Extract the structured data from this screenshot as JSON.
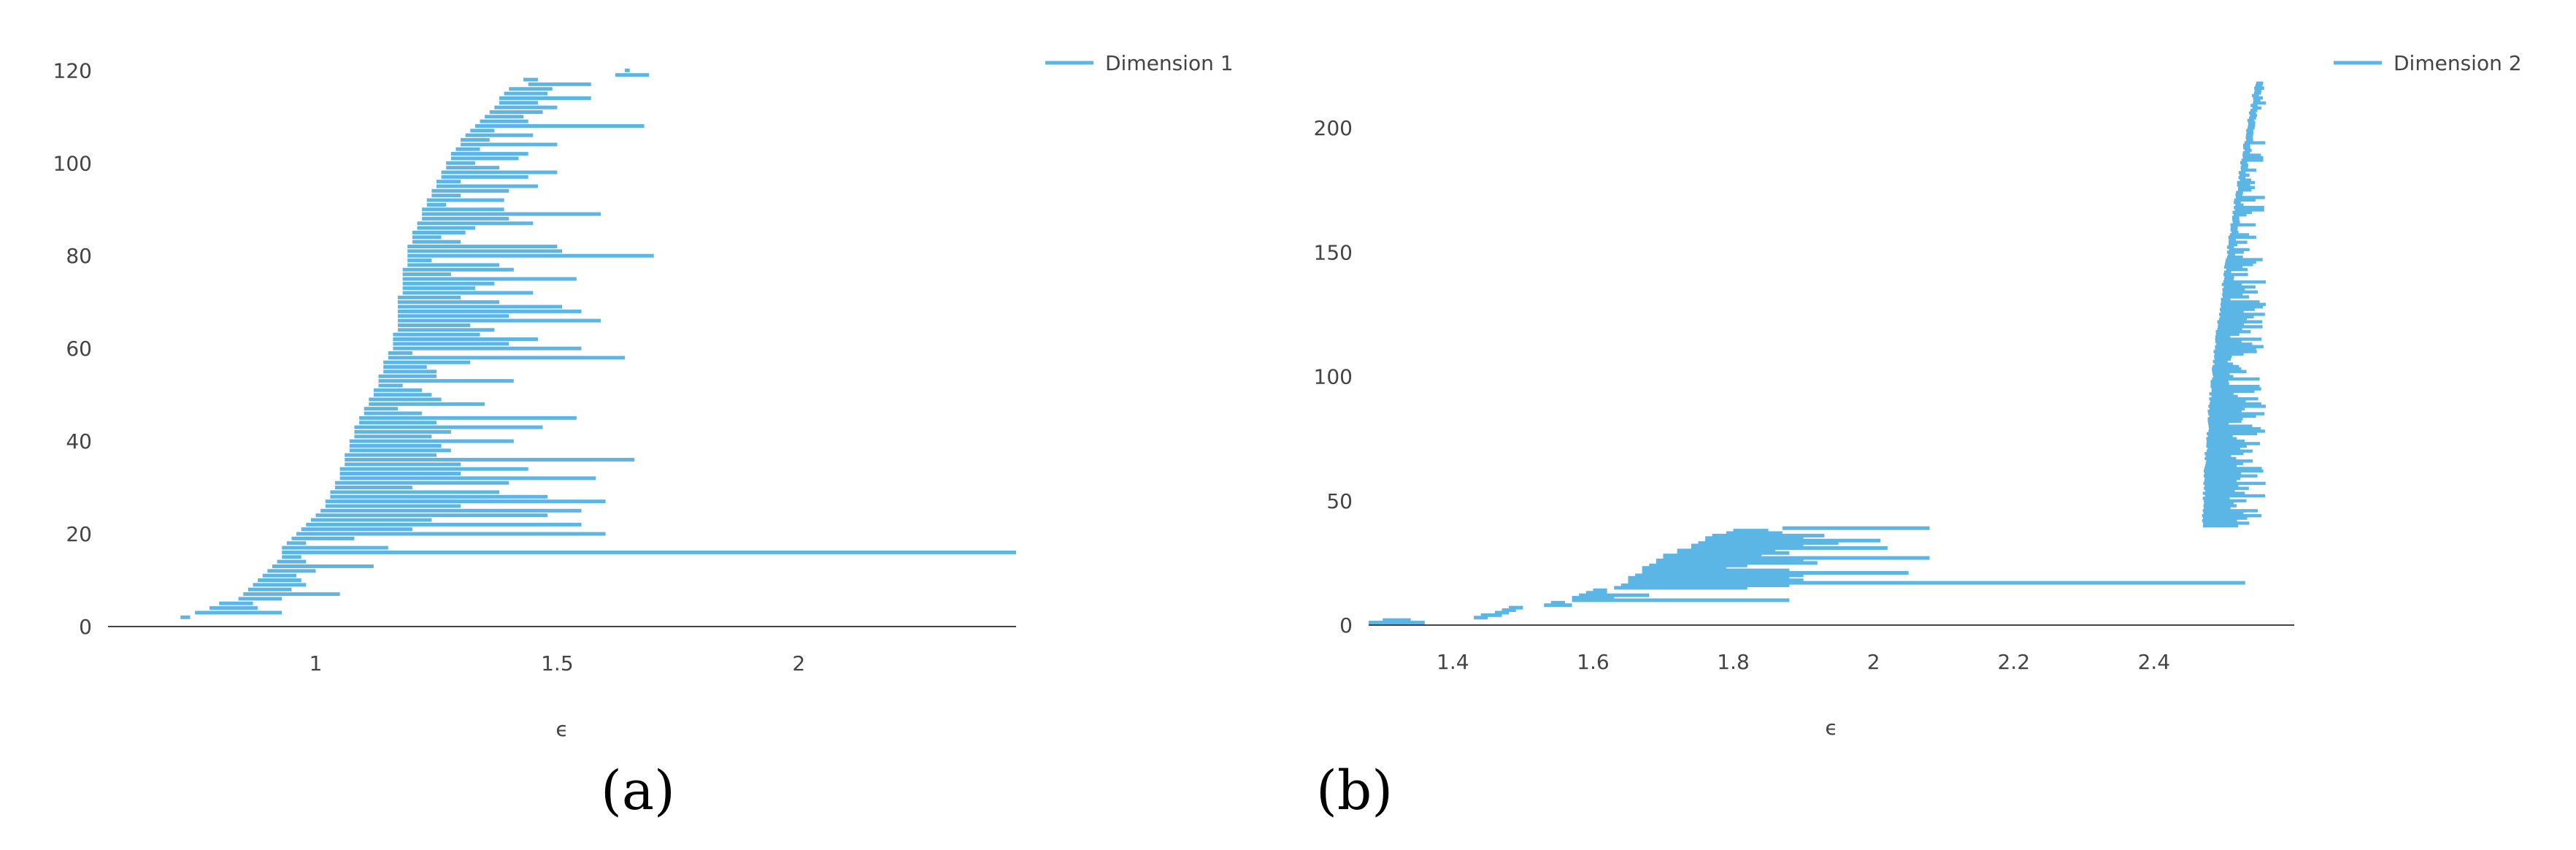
{
  "colors": {
    "bar": "#5bb6e6",
    "axis": "#444444"
  },
  "captions": {
    "a": "(a)",
    "b": "(b)"
  },
  "chart_data": [
    {
      "type": "bar",
      "subtype": "horizontal-interval",
      "legend": "Dimension 1",
      "legend_position": "top-right",
      "xlabel": "ϵ",
      "ylabel": "",
      "xlim": [
        0.57,
        2.45
      ],
      "ylim": [
        0,
        121
      ],
      "xticks": [
        1,
        1.5,
        2
      ],
      "yticks": [
        0,
        20,
        40,
        60,
        80,
        100,
        120
      ],
      "grid": false,
      "intervals": [
        [
          2,
          0.72,
          0.74
        ],
        [
          3,
          0.75,
          0.93
        ],
        [
          4,
          0.78,
          0.88
        ],
        [
          5,
          0.8,
          0.87
        ],
        [
          6,
          0.84,
          0.93
        ],
        [
          7,
          0.85,
          1.05
        ],
        [
          8,
          0.86,
          0.95
        ],
        [
          9,
          0.87,
          0.98
        ],
        [
          10,
          0.88,
          0.97
        ],
        [
          11,
          0.89,
          0.96
        ],
        [
          12,
          0.9,
          1.0
        ],
        [
          13,
          0.91,
          1.12
        ],
        [
          14,
          0.92,
          0.98
        ],
        [
          15,
          0.93,
          0.97
        ],
        [
          16,
          0.93,
          2.45
        ],
        [
          17,
          0.93,
          1.15
        ],
        [
          18,
          0.94,
          0.98
        ],
        [
          19,
          0.95,
          1.08
        ],
        [
          20,
          0.96,
          1.6
        ],
        [
          21,
          0.97,
          1.2
        ],
        [
          22,
          0.98,
          1.55
        ],
        [
          23,
          0.99,
          1.24
        ],
        [
          24,
          1.0,
          1.48
        ],
        [
          25,
          1.01,
          1.55
        ],
        [
          26,
          1.02,
          1.3
        ],
        [
          27,
          1.02,
          1.6
        ],
        [
          28,
          1.03,
          1.48
        ],
        [
          29,
          1.03,
          1.38
        ],
        [
          30,
          1.04,
          1.2
        ],
        [
          31,
          1.04,
          1.4
        ],
        [
          32,
          1.05,
          1.58
        ],
        [
          33,
          1.05,
          1.3
        ],
        [
          34,
          1.05,
          1.44
        ],
        [
          35,
          1.06,
          1.3
        ],
        [
          36,
          1.06,
          1.66
        ],
        [
          37,
          1.06,
          1.25
        ],
        [
          38,
          1.07,
          1.28
        ],
        [
          39,
          1.07,
          1.26
        ],
        [
          40,
          1.07,
          1.41
        ],
        [
          41,
          1.08,
          1.24
        ],
        [
          42,
          1.08,
          1.28
        ],
        [
          43,
          1.08,
          1.47
        ],
        [
          44,
          1.09,
          1.25
        ],
        [
          45,
          1.09,
          1.54
        ],
        [
          46,
          1.1,
          1.22
        ],
        [
          47,
          1.1,
          1.17
        ],
        [
          48,
          1.11,
          1.35
        ],
        [
          49,
          1.11,
          1.26
        ],
        [
          50,
          1.12,
          1.24
        ],
        [
          51,
          1.12,
          1.22
        ],
        [
          52,
          1.13,
          1.18
        ],
        [
          53,
          1.13,
          1.41
        ],
        [
          54,
          1.13,
          1.25
        ],
        [
          55,
          1.14,
          1.25
        ],
        [
          56,
          1.14,
          1.23
        ],
        [
          57,
          1.14,
          1.32
        ],
        [
          58,
          1.15,
          1.64
        ],
        [
          59,
          1.15,
          1.2
        ],
        [
          60,
          1.16,
          1.55
        ],
        [
          61,
          1.16,
          1.4
        ],
        [
          62,
          1.16,
          1.46
        ],
        [
          63,
          1.16,
          1.34
        ],
        [
          64,
          1.17,
          1.37
        ],
        [
          65,
          1.17,
          1.32
        ],
        [
          66,
          1.17,
          1.59
        ],
        [
          67,
          1.17,
          1.4
        ],
        [
          68,
          1.17,
          1.55
        ],
        [
          69,
          1.17,
          1.51
        ],
        [
          70,
          1.17,
          1.38
        ],
        [
          71,
          1.17,
          1.3
        ],
        [
          72,
          1.18,
          1.45
        ],
        [
          73,
          1.18,
          1.33
        ],
        [
          74,
          1.18,
          1.37
        ],
        [
          75,
          1.18,
          1.54
        ],
        [
          76,
          1.18,
          1.28
        ],
        [
          77,
          1.18,
          1.41
        ],
        [
          78,
          1.19,
          1.38
        ],
        [
          79,
          1.19,
          1.24
        ],
        [
          80,
          1.19,
          1.7
        ],
        [
          81,
          1.19,
          1.51
        ],
        [
          82,
          1.19,
          1.5
        ],
        [
          83,
          1.2,
          1.3
        ],
        [
          84,
          1.2,
          1.26
        ],
        [
          85,
          1.2,
          1.31
        ],
        [
          86,
          1.21,
          1.33
        ],
        [
          87,
          1.21,
          1.45
        ],
        [
          88,
          1.22,
          1.4
        ],
        [
          89,
          1.22,
          1.59
        ],
        [
          90,
          1.22,
          1.39
        ],
        [
          91,
          1.23,
          1.27
        ],
        [
          92,
          1.23,
          1.39
        ],
        [
          93,
          1.24,
          1.3
        ],
        [
          94,
          1.24,
          1.4
        ],
        [
          95,
          1.25,
          1.46
        ],
        [
          96,
          1.25,
          1.3
        ],
        [
          97,
          1.26,
          1.44
        ],
        [
          98,
          1.26,
          1.5
        ],
        [
          99,
          1.27,
          1.38
        ],
        [
          100,
          1.27,
          1.33
        ],
        [
          101,
          1.28,
          1.42
        ],
        [
          102,
          1.28,
          1.44
        ],
        [
          103,
          1.29,
          1.34
        ],
        [
          104,
          1.3,
          1.5
        ],
        [
          105,
          1.3,
          1.36
        ],
        [
          106,
          1.31,
          1.45
        ],
        [
          107,
          1.32,
          1.37
        ],
        [
          108,
          1.33,
          1.68
        ],
        [
          109,
          1.34,
          1.44
        ],
        [
          110,
          1.35,
          1.43
        ],
        [
          111,
          1.36,
          1.47
        ],
        [
          112,
          1.37,
          1.5
        ],
        [
          113,
          1.38,
          1.46
        ],
        [
          114,
          1.38,
          1.57
        ],
        [
          115,
          1.39,
          1.48
        ],
        [
          116,
          1.4,
          1.49
        ],
        [
          117,
          1.44,
          1.57
        ],
        [
          118,
          1.43,
          1.46
        ],
        [
          119,
          1.62,
          1.69
        ],
        [
          120,
          1.64,
          1.65
        ]
      ]
    },
    {
      "type": "bar",
      "subtype": "horizontal-interval",
      "legend": "Dimension 2",
      "legend_position": "top-right",
      "xlabel": "ϵ",
      "ylabel": "",
      "xlim": [
        1.28,
        2.6
      ],
      "ylim": [
        0,
        225
      ],
      "xticks": [
        1.4,
        1.6,
        1.8,
        2,
        2.2,
        2.4
      ],
      "yticks": [
        0,
        50,
        100,
        150,
        200
      ],
      "grid": false,
      "intervals": [
        [
          1,
          1.28,
          1.36
        ],
        [
          2,
          1.3,
          1.34
        ],
        [
          3,
          1.43,
          1.45
        ],
        [
          4,
          1.44,
          1.47
        ],
        [
          5,
          1.46,
          1.48
        ],
        [
          6,
          1.47,
          1.49
        ],
        [
          7,
          1.48,
          1.5
        ],
        [
          8,
          1.53,
          1.57
        ],
        [
          9,
          1.54,
          1.56
        ],
        [
          10,
          1.57,
          1.88
        ],
        [
          11,
          1.57,
          1.63
        ],
        [
          12,
          1.58,
          1.68
        ],
        [
          13,
          1.59,
          1.62
        ],
        [
          14,
          1.6,
          1.62
        ],
        [
          15,
          1.63,
          1.82
        ],
        [
          16,
          1.64,
          1.88
        ],
        [
          17,
          1.65,
          2.53
        ],
        [
          18,
          1.65,
          1.9
        ],
        [
          19,
          1.65,
          1.88
        ],
        [
          20,
          1.66,
          1.9
        ],
        [
          21,
          1.67,
          2.05
        ],
        [
          22,
          1.67,
          1.88
        ],
        [
          23,
          1.67,
          1.79
        ],
        [
          24,
          1.68,
          1.82
        ],
        [
          25,
          1.69,
          1.92
        ],
        [
          26,
          1.69,
          1.9
        ],
        [
          27,
          1.7,
          2.08
        ],
        [
          28,
          1.7,
          1.84
        ],
        [
          29,
          1.72,
          1.88
        ],
        [
          30,
          1.72,
          1.86
        ],
        [
          31,
          1.74,
          2.02
        ],
        [
          32,
          1.74,
          1.9
        ],
        [
          33,
          1.75,
          1.95
        ],
        [
          34,
          1.76,
          2.01
        ],
        [
          35,
          1.76,
          1.9
        ],
        [
          36,
          1.77,
          1.93
        ],
        [
          37,
          1.79,
          1.87
        ],
        [
          38,
          1.8,
          1.85
        ],
        [
          39,
          1.87,
          2.08
        ],
        [
          40,
          2.47,
          2.52
        ]
      ],
      "interval_band": {
        "y_range": [
          40,
          218
        ],
        "start_low": 2.47,
        "start_high": 2.545,
        "end_range": [
          2.505,
          2.56
        ]
      }
    }
  ]
}
